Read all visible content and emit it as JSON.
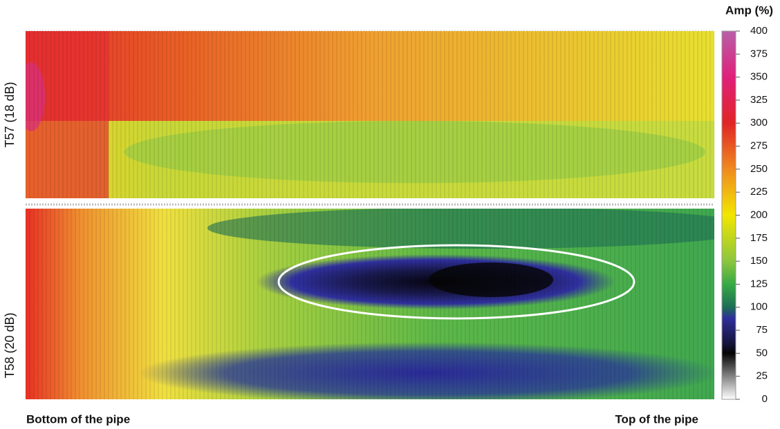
{
  "chart_data": {
    "type": "heatmap",
    "colorbar": {
      "label": "Amp (%)",
      "lim": [
        0,
        400
      ],
      "ticks": [
        0,
        25,
        50,
        75,
        100,
        125,
        150,
        175,
        200,
        225,
        250,
        275,
        300,
        325,
        350,
        375,
        400
      ]
    },
    "panels": [
      {
        "label": "T57 (18 dB)"
      },
      {
        "label": "T58 (20 dB)"
      }
    ],
    "x_labels": [
      "Bottom of the pipe",
      "Top of the pipe"
    ]
  }
}
